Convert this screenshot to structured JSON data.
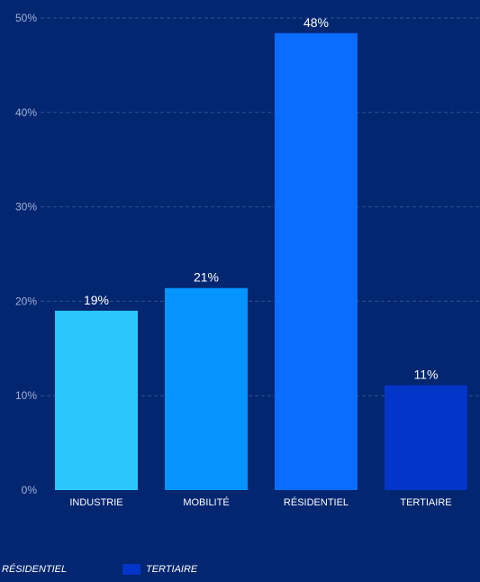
{
  "chart_data": {
    "type": "bar",
    "categories": [
      "INDUSTRIE",
      "MOBILITÉ",
      "RÉSIDENTIEL",
      "TERTIAIRE"
    ],
    "values": [
      19,
      21.4,
      48.4,
      11.1
    ],
    "data_labels": [
      "19%",
      "21%",
      "48%",
      "11%"
    ],
    "y_ticks": [
      "0%",
      "10%",
      "20%",
      "30%",
      "40%",
      "50%"
    ],
    "ylim": [
      0,
      50
    ],
    "grid": true,
    "colors": [
      "#29c7fb",
      "#0594ff",
      "#0a6dff",
      "#0335c8"
    ],
    "legend_position": "bottom-left"
  },
  "legend": [
    {
      "label": "RÉSIDENTIEL",
      "color": "#0a6dff"
    },
    {
      "label": "TERTIAIRE",
      "color": "#0335c8"
    }
  ]
}
